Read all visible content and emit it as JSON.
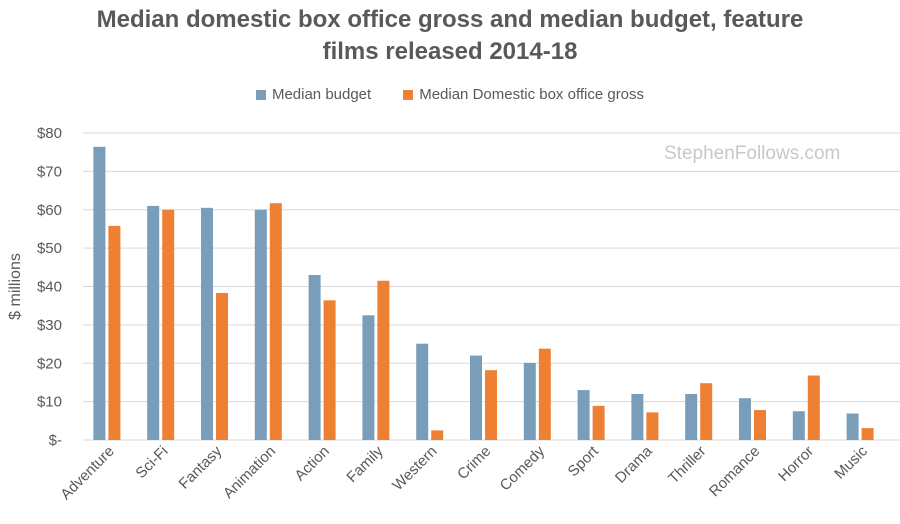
{
  "chart_data": {
    "type": "bar",
    "title": "Median domestic box office gross and median budget, feature films released 2014-18",
    "title_lines": [
      "Median domestic box office gross and median budget, feature",
      "films released 2014-18"
    ],
    "xlabel": "",
    "ylabel": "$ millions",
    "ylim": [
      0,
      80
    ],
    "yticks": [
      0,
      10,
      20,
      30,
      40,
      50,
      60,
      70,
      80
    ],
    "ytick_labels": [
      "$-",
      "$10",
      "$20",
      "$30",
      "$40",
      "$50",
      "$60",
      "$70",
      "$80"
    ],
    "grid": true,
    "legend_position": "top",
    "categories": [
      "Adventure",
      "Sci-Fi",
      "Fantasy",
      "Animation",
      "Action",
      "Family",
      "Western",
      "Crime",
      "Comedy",
      "Sport",
      "Drama",
      "Thriller",
      "Romance",
      "Horror",
      "Music"
    ],
    "series": [
      {
        "name": "Median budget",
        "color": "#7a9eba",
        "values": [
          76.4,
          61.0,
          60.5,
          60.0,
          43.0,
          32.5,
          25.1,
          22.0,
          20.1,
          13.0,
          12.0,
          12.0,
          10.9,
          7.5,
          6.9
        ]
      },
      {
        "name": "Median Domestic box office gross",
        "color": "#ee8034",
        "values": [
          55.8,
          60.0,
          38.3,
          61.7,
          36.4,
          41.5,
          2.5,
          18.2,
          23.8,
          8.9,
          7.2,
          14.8,
          7.8,
          16.8,
          3.1
        ]
      }
    ],
    "watermark": "StephenFollows.com"
  }
}
